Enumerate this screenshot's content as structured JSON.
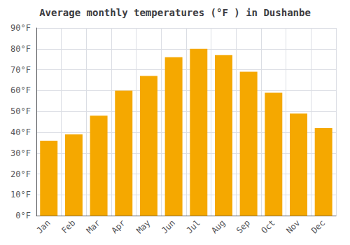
{
  "chart_data": {
    "type": "bar",
    "title": "Average monthly temperatures (°F ) in Dushanbe",
    "categories": [
      "Jan",
      "Feb",
      "Mar",
      "Apr",
      "May",
      "Jun",
      "Jul",
      "Aug",
      "Sep",
      "Oct",
      "Nov",
      "Dec"
    ],
    "values": [
      36,
      39,
      48,
      60,
      67,
      76,
      80,
      77,
      69,
      59,
      49,
      42
    ],
    "color": "#F5A800",
    "ylim": [
      0,
      90
    ],
    "yticks": [
      {
        "value": 0,
        "label": "0°F"
      },
      {
        "value": 10,
        "label": "10°F"
      },
      {
        "value": 20,
        "label": "20°F"
      },
      {
        "value": 30,
        "label": "30°F"
      },
      {
        "value": 40,
        "label": "40°F"
      },
      {
        "value": 50,
        "label": "50°F"
      },
      {
        "value": 60,
        "label": "60°F"
      },
      {
        "value": 70,
        "label": "70°F"
      },
      {
        "value": 80,
        "label": "80°F"
      },
      {
        "value": 90,
        "label": "90°F"
      }
    ],
    "grid": true
  }
}
